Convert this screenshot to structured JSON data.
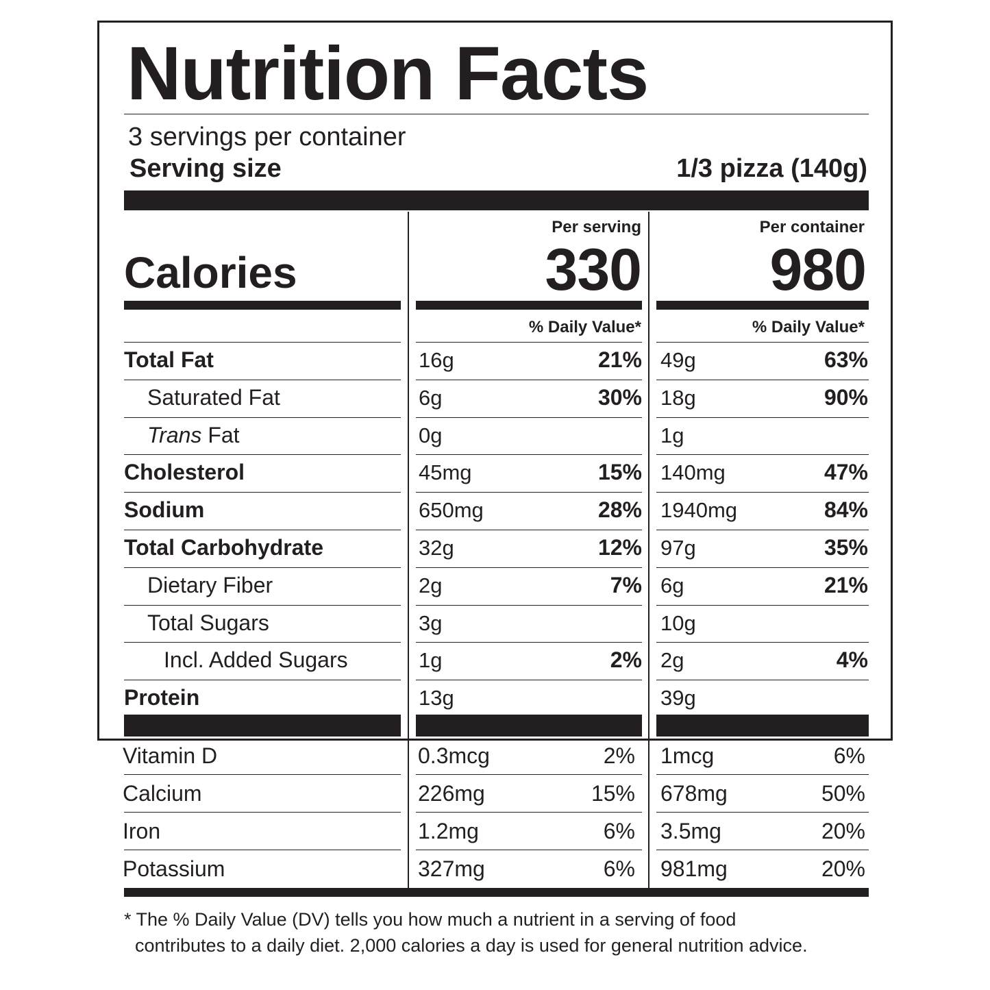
{
  "title": "Nutrition Facts",
  "servings_per_container": "3 servings per container",
  "serving_size_label": "Serving size",
  "serving_size_value": "1/3 pizza (140g)",
  "calories_label": "Calories",
  "columns": {
    "per_serving_label": "Per serving",
    "per_container_label": "Per container",
    "calories_per_serving": "330",
    "calories_per_container": "980",
    "daily_value_label": "% Daily Value*"
  },
  "nutrients": [
    {
      "name": "Total Fat",
      "prefix": "",
      "italic": "",
      "suffix": "",
      "bold": true,
      "indent": 0,
      "serving_amount": "16g",
      "serving_dv": "21%",
      "container_amount": "49g",
      "container_dv": "63%"
    },
    {
      "name": "Saturated Fat",
      "prefix": "",
      "italic": "",
      "suffix": "",
      "bold": false,
      "indent": 1,
      "serving_amount": "6g",
      "serving_dv": "30%",
      "container_amount": "18g",
      "container_dv": "90%"
    },
    {
      "name": "",
      "prefix": "",
      "italic": "Trans",
      "suffix": " Fat",
      "bold": false,
      "indent": 1,
      "serving_amount": "0g",
      "serving_dv": "",
      "container_amount": "1g",
      "container_dv": ""
    },
    {
      "name": "Cholesterol",
      "prefix": "",
      "italic": "",
      "suffix": "",
      "bold": true,
      "indent": 0,
      "serving_amount": "45mg",
      "serving_dv": "15%",
      "container_amount": "140mg",
      "container_dv": "47%"
    },
    {
      "name": "Sodium",
      "prefix": "",
      "italic": "",
      "suffix": "",
      "bold": true,
      "indent": 0,
      "serving_amount": "650mg",
      "serving_dv": "28%",
      "container_amount": "1940mg",
      "container_dv": "84%"
    },
    {
      "name": "Total Carbohydrate",
      "prefix": "",
      "italic": "",
      "suffix": "",
      "bold": true,
      "indent": 0,
      "serving_amount": "32g",
      "serving_dv": "12%",
      "container_amount": "97g",
      "container_dv": "35%"
    },
    {
      "name": "Dietary Fiber",
      "prefix": "",
      "italic": "",
      "suffix": "",
      "bold": false,
      "indent": 1,
      "serving_amount": "2g",
      "serving_dv": "7%",
      "container_amount": "6g",
      "container_dv": "21%"
    },
    {
      "name": "Total Sugars",
      "prefix": "",
      "italic": "",
      "suffix": "",
      "bold": false,
      "indent": 1,
      "serving_amount": "3g",
      "serving_dv": "",
      "container_amount": "10g",
      "container_dv": ""
    },
    {
      "name": "Incl. Added Sugars",
      "prefix": "",
      "italic": "",
      "suffix": "",
      "bold": false,
      "indent": 2,
      "serving_amount": "1g",
      "serving_dv": "2%",
      "container_amount": "2g",
      "container_dv": "4%"
    },
    {
      "name": "Protein",
      "prefix": "",
      "italic": "",
      "suffix": "",
      "bold": true,
      "indent": 0,
      "serving_amount": "13g",
      "serving_dv": "",
      "container_amount": "39g",
      "container_dv": ""
    }
  ],
  "vitamins": [
    {
      "name": "Vitamin D",
      "serving_amount": "0.3mcg",
      "serving_dv": "2%",
      "container_amount": "1mcg",
      "container_dv": "6%"
    },
    {
      "name": "Calcium",
      "serving_amount": "226mg",
      "serving_dv": "15%",
      "container_amount": "678mg",
      "container_dv": "50%"
    },
    {
      "name": "Iron",
      "serving_amount": "1.2mg",
      "serving_dv": "6%",
      "container_amount": "3.5mg",
      "container_dv": "20%"
    },
    {
      "name": "Potassium",
      "serving_amount": "327mg",
      "serving_dv": "6%",
      "container_amount": "981mg",
      "container_dv": "20%"
    }
  ],
  "footnote": {
    "line1": "* The % Daily Value (DV) tells you how much a nutrient in a serving of food",
    "line2": "contributes to a daily diet. 2,000 calories a day is used for general nutrition advice."
  },
  "colors": {
    "ink": "#231f20",
    "background": "#ffffff"
  }
}
